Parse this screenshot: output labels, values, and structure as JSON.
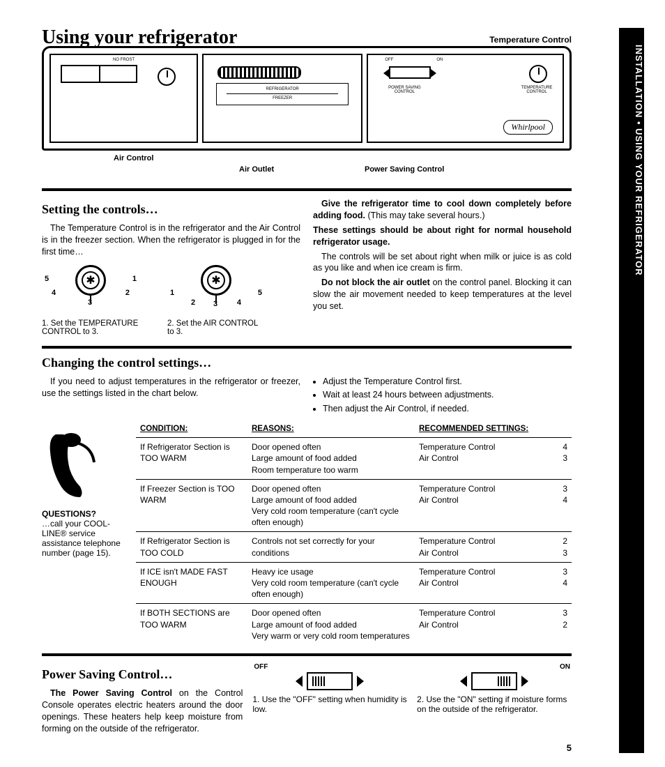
{
  "page": {
    "title": "Using your refrigerator",
    "side_tab": "INSTALLATION • USING YOUR REFRIGERATOR",
    "page_number": "5"
  },
  "diagram": {
    "top_label": "Temperature Control",
    "air_control_label": "Air Control",
    "air_outlet_label": "Air Outlet",
    "power_saving_label": "Power Saving Control",
    "brand": "Whirlpool",
    "no_frost": "NO FROST",
    "refrigerator_text": "REFRIGERATOR",
    "freezer_text": "FREEZER",
    "off": "OFF",
    "on": "ON",
    "psc_small": "POWER SAVING CONTROL",
    "temp_small": "TEMPERATURE CONTROL"
  },
  "setting_controls": {
    "heading": "Setting the controls…",
    "p1": "The Temperature Control is in the refrigerator and the Air Control is in the freezer section. When the refrigerator is plugged in for the first time…",
    "dial1": {
      "nums": [
        "5",
        "4",
        "3",
        "2",
        "1"
      ],
      "step": "1. Set the TEMPERATURE CONTROL to 3."
    },
    "dial2": {
      "nums": [
        "1",
        "2",
        "3",
        "4",
        "5"
      ],
      "step": "2. Set the AIR CONTROL to 3."
    },
    "right_bold1": "Give the refrigerator time to cool down completely before adding food.",
    "right_p1_tail": " (This may take several hours.)",
    "right_bold2": "These settings should be about right for normal household refrigerator usage.",
    "right_p2": "The controls will be set about right when milk or juice is as cold as you like and when ice cream is firm.",
    "right_p3_bold": "Do not block the air outlet",
    "right_p3_tail": " on the control panel. Blocking it can slow the air movement needed to keep temperatures at the level you set."
  },
  "changing": {
    "heading": "Changing the control settings…",
    "intro": "If you need to adjust temperatures in the refrigerator or freezer, use the settings listed in the chart below.",
    "bullets": [
      "Adjust the Temperature Control first.",
      "Wait at least 24 hours between adjustments.",
      "Then adjust the Air Control, if needed."
    ],
    "sidebar": {
      "questions": "QUESTIONS?",
      "text": "…call your COOL-LINE® service assistance telephone number (page 15)."
    },
    "table": {
      "headers": [
        "CONDITION:",
        "REASONS:",
        "RECOMMENDED SETTINGS:"
      ],
      "rows": [
        {
          "condition": "If Refrigerator Section is TOO WARM",
          "reasons": "Door opened often\nLarge amount of food added\nRoom temperature too warm",
          "rec": [
            [
              "Temperature Control",
              "4"
            ],
            [
              "Air Control",
              "3"
            ]
          ]
        },
        {
          "condition": "If Freezer Section is TOO WARM",
          "reasons": "Door opened often\nLarge amount of food added\nVery cold room temperature (can't cycle often enough)",
          "rec": [
            [
              "Temperature Control",
              "3"
            ],
            [
              "Air Control",
              "4"
            ]
          ]
        },
        {
          "condition": "If Refrigerator Section is TOO COLD",
          "reasons": "Controls not set correctly for your conditions",
          "rec": [
            [
              "Temperature Control",
              "2"
            ],
            [
              "Air Control",
              "3"
            ]
          ]
        },
        {
          "condition": "If ICE isn't MADE FAST ENOUGH",
          "reasons": "Heavy ice usage\nVery cold room temperature (can't cycle often enough)",
          "rec": [
            [
              "Temperature Control",
              "3"
            ],
            [
              "Air Control",
              "4"
            ]
          ]
        },
        {
          "condition": "If BOTH SECTIONS are TOO WARM",
          "reasons": "Door opened often\nLarge amount of food added\nVery warm or very cold room temperatures",
          "rec": [
            [
              "Temperature Control",
              "3"
            ],
            [
              "Air Control",
              "2"
            ]
          ]
        }
      ]
    }
  },
  "power": {
    "heading": "Power Saving Control…",
    "p_bold": "The Power Saving Control",
    "p_tail": " on the Control Console operates electric heaters around the door openings. These heaters help keep moisture from forming on the outside of the refrigerator.",
    "off_label": "OFF",
    "on_label": "ON",
    "step1": "1. Use the \"OFF\" setting when humidity is low.",
    "step2": "2. Use the \"ON\" setting if moisture forms on the outside of the refrigerator."
  },
  "colors": {
    "text": "#000000",
    "bg": "#ffffff"
  }
}
